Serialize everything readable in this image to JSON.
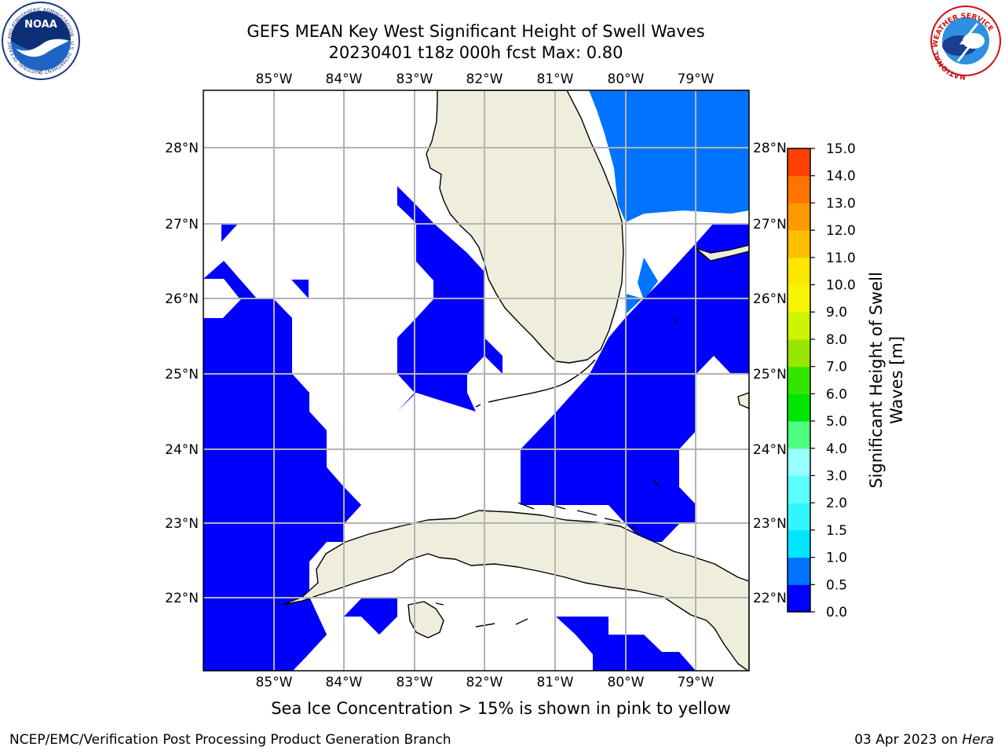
{
  "title_line1": "GEFS MEAN Key West Significant Height of Swell Waves",
  "title_line2": "20230401 t18z 000h fcst   Max: 0.80",
  "lon_labels": [
    "85°W",
    "84°W",
    "83°W",
    "82°W",
    "81°W",
    "80°W",
    "79°W"
  ],
  "lat_labels": [
    "28°N",
    "27°N",
    "26°N",
    "25°N",
    "24°N",
    "23°N",
    "22°N"
  ],
  "colorbar": {
    "label": "Significant Height of Swell Waves [m]",
    "label_line1": "Significant Height of Swell",
    "label_line2": "Waves [m]",
    "ticks": [
      "0.0",
      "0.5",
      "1.0",
      "1.5",
      "2.0",
      "3.0",
      "4.0",
      "5.0",
      "6.0",
      "7.0",
      "8.0",
      "9.0",
      "10.0",
      "11.0",
      "12.0",
      "13.0",
      "14.0",
      "15.0"
    ],
    "colors": [
      "#0000ff",
      "#0073ff",
      "#00e6ff",
      "#33f5ff",
      "#5cffff",
      "#99ffff",
      "#4dff80",
      "#00e600",
      "#33e600",
      "#99e600",
      "#ccf500",
      "#f5f500",
      "#ffe600",
      "#ffbf00",
      "#ff9900",
      "#ff7300",
      "#ff4000",
      "#ff0000"
    ]
  },
  "sea_ice_note": "Sea Ice Concentration > 15% is shown in pink to yellow",
  "footer_left": "NCEP/EMC/Verification Post Processing Product Generation Branch",
  "footer_right_date": "03 Apr 2023 on",
  "footer_right_host": "Hera",
  "logos": {
    "noaa": "NOAA",
    "noaa_ring": "NATIONAL OCEANIC AND ATMOSPHERIC ADMINISTRATION · U.S. DEPARTMENT OF COMMERCE",
    "nws_ring": "NATIONAL WEATHER SERVICE"
  }
}
